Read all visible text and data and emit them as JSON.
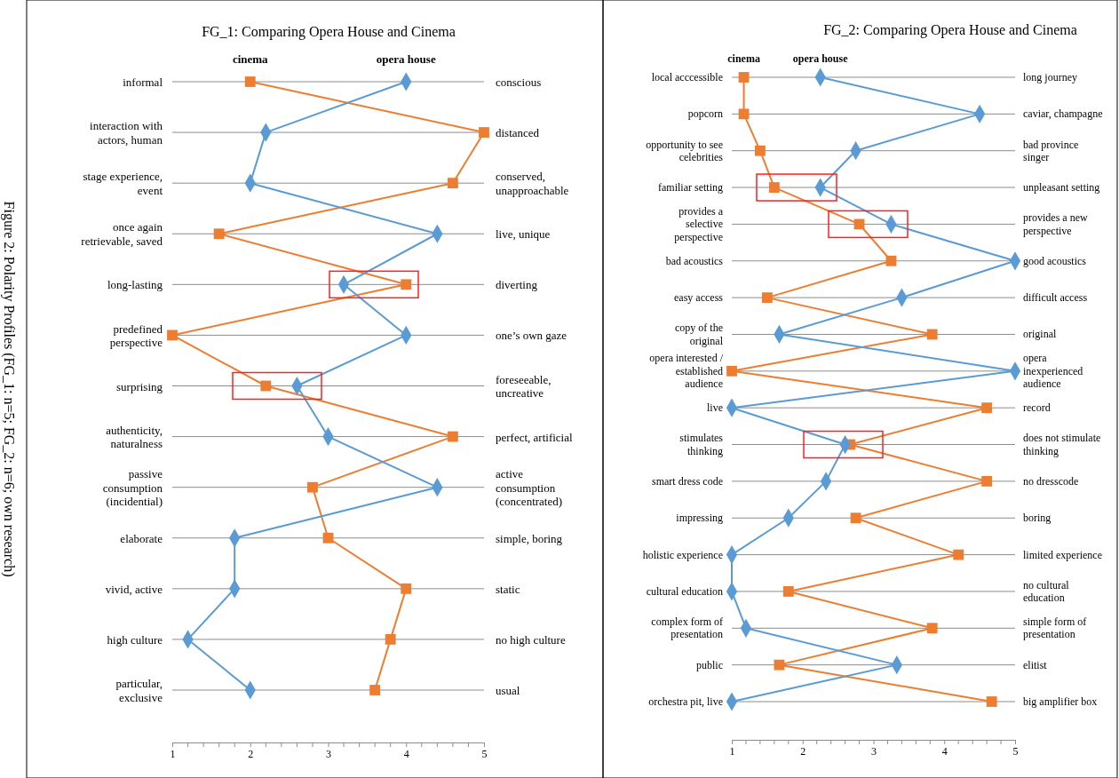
{
  "chart_data": [
    {
      "type": "line",
      "title": "FG_1: Comparing Opera House and Cinema",
      "orientation": "horizontal",
      "xlim": [
        1,
        5
      ],
      "xticks": [
        1,
        2,
        3,
        4,
        5
      ],
      "grid": "y",
      "line_style": "solid",
      "categories": [
        "informal",
        "interaction with\nactors, human",
        "stage experience,\nevent",
        "once again\nretrievable, saved",
        "long-lasting",
        "predefined\nperspective",
        "surprising",
        "authenticity,\nnaturalness",
        "passive\nconsumption\n(incidential)",
        "elaborate",
        "vivid, active",
        "high culture",
        "particular,\nexclusive"
      ],
      "y2_categories": [
        "conscious",
        "distanced",
        "conserved,\nunapproachable",
        "live, unique",
        "diverting",
        "one’s own gaze",
        "foreseeable,\nuncreative",
        "perfect, artificial",
        "active\nconsumption\n(concentrated)",
        "simple, boring",
        "static",
        "no high culture",
        "usual"
      ],
      "series": [
        {
          "name": "cinema",
          "color": "#ed7d31",
          "marker": "square",
          "values": [
            2.0,
            5.0,
            4.6,
            1.6,
            4.0,
            1.0,
            2.2,
            4.6,
            2.8,
            3.0,
            4.0,
            3.8,
            3.6
          ]
        },
        {
          "name": "opera house",
          "color": "#5b9bd5",
          "marker": "diamond",
          "values": [
            4.0,
            2.2,
            2.0,
            4.4,
            3.2,
            4.0,
            2.6,
            3.0,
            4.4,
            1.8,
            1.8,
            1.2,
            2.0
          ]
        }
      ],
      "annotations": [
        "Figure 2: Polarity Profiles (FG_1: n=5; FG_2: n=6; own research)"
      ]
    },
    {
      "type": "line",
      "title": "FG_2: Comparing Opera House and Cinema",
      "orientation": "horizontal",
      "xlim": [
        1,
        5
      ],
      "xticks": [
        1,
        2,
        3,
        4,
        5
      ],
      "grid": "y",
      "line_style": "solid",
      "categories": [
        "local acccessible",
        "popcorn",
        "opportunity to see\ncelebrities",
        "familiar setting",
        "provides a\nselective\nperspective",
        "bad acoustics",
        "easy access",
        "copy of the\noriginal",
        "opera interested /\nestablished\naudience",
        "live",
        "stimulates\nthinking",
        "smart dress code",
        "impressing",
        "holistic experience",
        "cultural education",
        "complex form of\npresentation",
        "public",
        "orchestra pit, live"
      ],
      "y2_categories": [
        "long journey",
        "caviar, champagne",
        "bad province\nsinger",
        "unpleasant setting",
        "provides a new\nperspective",
        "good acoustics",
        "difficult access",
        "original",
        "opera\ninexperienced\naudience",
        "record",
        "does not stimulate\nthinking",
        "no dresscode",
        "boring",
        "limited experience",
        "no cultural\neducation",
        "simple form of\npresentation",
        "elitist",
        "big amplifier box"
      ],
      "series": [
        {
          "name": "cinema",
          "color": "#ed7d31",
          "marker": "square",
          "values": [
            1.17,
            1.17,
            1.4,
            1.6,
            2.8,
            3.25,
            1.5,
            3.83,
            1.0,
            4.6,
            2.67,
            4.6,
            2.75,
            4.2,
            1.8,
            3.83,
            1.67,
            4.67
          ]
        },
        {
          "name": "opera house",
          "color": "#5b9bd5",
          "marker": "diamond",
          "values": [
            2.25,
            4.5,
            2.75,
            2.25,
            3.25,
            5.0,
            3.4,
            1.67,
            5.0,
            1.0,
            2.6,
            2.33,
            1.8,
            1.0,
            1.0,
            1.2,
            3.33,
            1.0
          ]
        }
      ]
    }
  ]
}
